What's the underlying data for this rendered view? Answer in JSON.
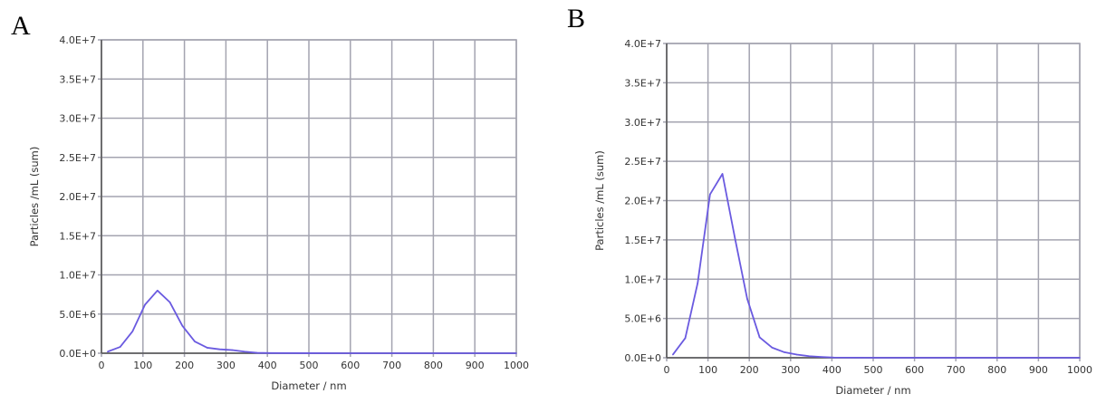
{
  "chart_data": [
    {
      "panel_label": "A",
      "type": "line",
      "xlabel": "Diameter / nm",
      "ylabel": "Particles /mL (sum)",
      "xlim": [
        0,
        1000
      ],
      "ylim": [
        0,
        40000000
      ],
      "grid": true,
      "x_ticks": [
        "0",
        "100",
        "200",
        "300",
        "400",
        "500",
        "600",
        "700",
        "800",
        "900",
        "1000"
      ],
      "y_ticks": [
        "0.0E+0",
        "5.0E+6",
        "1.0E+7",
        "1.5E+7",
        "2.0E+7",
        "2.5E+7",
        "3.0E+7",
        "3.5E+7",
        "4.0E+7"
      ],
      "color": "#6a5ae0",
      "x": [
        15,
        45,
        75,
        105,
        135,
        165,
        195,
        225,
        255,
        285,
        315,
        345,
        375,
        405,
        500,
        600,
        700,
        800,
        900,
        1000
      ],
      "y": [
        200000,
        800000,
        2800000,
        6200000,
        8000000,
        6500000,
        3500000,
        1500000,
        700000,
        500000,
        400000,
        200000,
        50000,
        20000,
        10000,
        0,
        0,
        0,
        0,
        0
      ]
    },
    {
      "panel_label": "B",
      "type": "line",
      "xlabel": "Diameter / nm",
      "ylabel": "Particles /mL (sum)",
      "xlim": [
        0,
        1000
      ],
      "ylim": [
        0,
        40000000
      ],
      "grid": true,
      "x_ticks": [
        "0",
        "100",
        "200",
        "300",
        "400",
        "500",
        "600",
        "700",
        "800",
        "900",
        "1000"
      ],
      "y_ticks": [
        "0.0E+0",
        "5.0E+6",
        "1.0E+7",
        "1.5E+7",
        "2.0E+7",
        "2.5E+7",
        "3.0E+7",
        "3.5E+7",
        "4.0E+7"
      ],
      "color": "#6a5ae0",
      "x": [
        15,
        45,
        75,
        105,
        135,
        165,
        195,
        225,
        255,
        285,
        315,
        345,
        375,
        405,
        500,
        600,
        700,
        800,
        900,
        1000
      ],
      "y": [
        400000,
        2500000,
        9500000,
        20800000,
        23400000,
        15300000,
        7500000,
        2600000,
        1300000,
        700000,
        400000,
        200000,
        100000,
        30000,
        0,
        0,
        0,
        0,
        0,
        0
      ]
    }
  ]
}
